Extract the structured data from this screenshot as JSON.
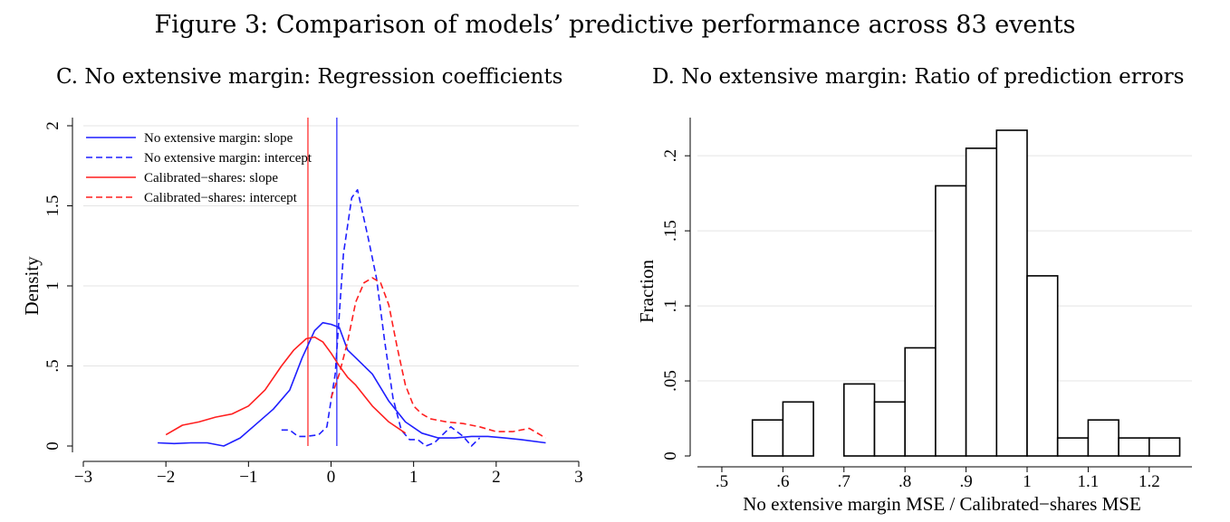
{
  "figure_title": "Figure 3: Comparison of models’ predictive performance across 83 events",
  "colors": {
    "blue": "#1f1fff",
    "red": "#ff1f1f",
    "grid": "#e4e4e4"
  },
  "chart_data": [
    {
      "id": "panel-c",
      "type": "line",
      "title": "C. No extensive margin: Regression coefficients",
      "xlabel": "",
      "ylabel": "Density",
      "xlim": [
        -3,
        3
      ],
      "ylim": [
        0,
        2
      ],
      "xticks": [
        -3,
        -2,
        -1,
        0,
        1,
        2,
        3
      ],
      "xtick_labels": [
        "−3",
        "−2",
        "−1",
        "0",
        "1",
        "2",
        "3"
      ],
      "yticks": [
        0,
        0.5,
        1,
        1.5,
        2
      ],
      "ytick_labels": [
        "0",
        ".5",
        "1",
        "1.5",
        "2"
      ],
      "grid": true,
      "legend_position": "top-left",
      "vlines": [
        {
          "x": -0.28,
          "color": "red"
        },
        {
          "x": 0.07,
          "color": "blue"
        }
      ],
      "series": [
        {
          "name": "No extensive margin: slope",
          "color": "blue",
          "dash": false,
          "x": [
            -2.1,
            -1.9,
            -1.7,
            -1.5,
            -1.3,
            -1.1,
            -0.9,
            -0.7,
            -0.5,
            -0.35,
            -0.2,
            -0.1,
            0.0,
            0.1,
            0.2,
            0.3,
            0.5,
            0.7,
            0.9,
            1.1,
            1.3,
            1.5,
            1.7,
            1.9,
            2.1,
            2.3,
            2.6
          ],
          "y": [
            0.02,
            0.015,
            0.02,
            0.02,
            0.0,
            0.05,
            0.14,
            0.23,
            0.35,
            0.55,
            0.72,
            0.77,
            0.76,
            0.74,
            0.6,
            0.55,
            0.45,
            0.28,
            0.15,
            0.08,
            0.05,
            0.05,
            0.06,
            0.06,
            0.05,
            0.04,
            0.02
          ]
        },
        {
          "name": "No extensive margin: intercept",
          "color": "blue",
          "dash": true,
          "x": [
            -0.6,
            -0.5,
            -0.4,
            -0.3,
            -0.15,
            -0.05,
            0.05,
            0.15,
            0.25,
            0.32,
            0.45,
            0.55,
            0.65,
            0.75,
            0.85,
            0.95,
            1.05,
            1.15,
            1.25,
            1.45,
            1.6,
            1.7,
            1.8
          ],
          "y": [
            0.1,
            0.1,
            0.06,
            0.06,
            0.07,
            0.12,
            0.45,
            1.2,
            1.55,
            1.6,
            1.3,
            1.05,
            0.65,
            0.3,
            0.1,
            0.04,
            0.04,
            0.0,
            0.02,
            0.12,
            0.06,
            0.0,
            0.05
          ]
        },
        {
          "name": "Calibrated−shares: slope",
          "color": "red",
          "dash": false,
          "x": [
            -2.0,
            -1.8,
            -1.6,
            -1.4,
            -1.2,
            -1.0,
            -0.8,
            -0.6,
            -0.45,
            -0.3,
            -0.2,
            -0.1,
            0.0,
            0.1,
            0.2,
            0.3,
            0.5,
            0.7,
            0.9
          ],
          "y": [
            0.07,
            0.13,
            0.15,
            0.18,
            0.2,
            0.25,
            0.35,
            0.5,
            0.6,
            0.67,
            0.68,
            0.65,
            0.58,
            0.5,
            0.43,
            0.38,
            0.25,
            0.15,
            0.08
          ]
        },
        {
          "name": "Calibrated−shares: intercept",
          "color": "red",
          "dash": true,
          "x": [
            0.0,
            0.1,
            0.2,
            0.3,
            0.4,
            0.5,
            0.6,
            0.7,
            0.8,
            0.9,
            1.0,
            1.1,
            1.2,
            1.4,
            1.6,
            1.8,
            2.0,
            2.2,
            2.4,
            2.6
          ],
          "y": [
            0.3,
            0.45,
            0.65,
            0.9,
            1.02,
            1.05,
            1.02,
            0.88,
            0.62,
            0.38,
            0.25,
            0.2,
            0.17,
            0.15,
            0.14,
            0.12,
            0.09,
            0.09,
            0.11,
            0.05
          ]
        }
      ]
    },
    {
      "id": "panel-d",
      "type": "bar",
      "title": "D. No extensive margin: Ratio of prediction errors",
      "xlabel": "No extensive margin MSE / Calibrated−shares MSE",
      "ylabel": "Fraction",
      "xlim": [
        0.46,
        1.27
      ],
      "ylim": [
        0,
        0.22
      ],
      "xticks": [
        0.5,
        0.6,
        0.7,
        0.8,
        0.9,
        1.0,
        1.1,
        1.2
      ],
      "xtick_labels": [
        ".5",
        ".6",
        ".7",
        ".8",
        ".9",
        "1",
        "1.1",
        "1.2"
      ],
      "yticks": [
        0,
        0.05,
        0.1,
        0.15,
        0.2
      ],
      "ytick_labels": [
        "0",
        ".05",
        ".1",
        ".15",
        ".2"
      ],
      "grid": true,
      "bin_width": 0.05,
      "bin_starts": [
        0.55,
        0.6,
        0.7,
        0.75,
        0.8,
        0.85,
        0.9,
        0.95,
        1.0,
        1.05,
        1.1,
        1.15,
        1.2
      ],
      "values": [
        0.024,
        0.036,
        0.048,
        0.036,
        0.072,
        0.18,
        0.205,
        0.217,
        0.12,
        0.012,
        0.024,
        0.012,
        0.012
      ]
    }
  ]
}
